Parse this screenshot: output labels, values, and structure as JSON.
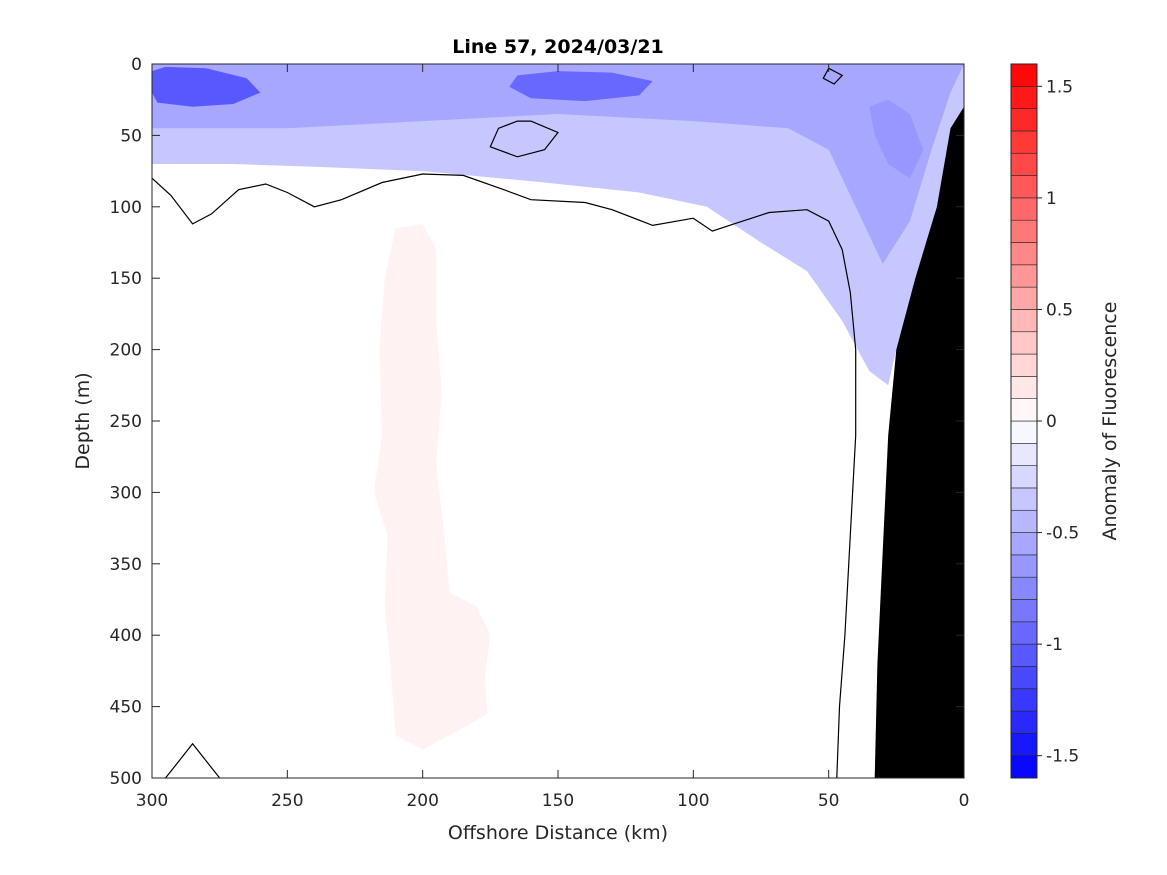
{
  "chart_data": {
    "type": "heatmap",
    "title": "Line 57, 2024/03/21",
    "xlabel": "Offshore Distance (km)",
    "ylabel": "Depth (m)",
    "colorbar_label": "Anomaly of Fluorescence",
    "xlim": [
      300,
      0
    ],
    "ylim": [
      0,
      500
    ],
    "x_ticks": [
      300,
      250,
      200,
      150,
      100,
      50,
      0
    ],
    "y_ticks": [
      0,
      50,
      100,
      150,
      200,
      250,
      300,
      350,
      400,
      450,
      500
    ],
    "colorbar_range": [
      -1.6,
      1.6
    ],
    "colorbar_ticks": [
      1.5,
      1,
      0.5,
      0,
      -0.5,
      -1,
      -1.5
    ],
    "colorbar_levels": 32,
    "colors": {
      "positive": "#ff0000",
      "negative": "#0000ff",
      "zero": "#ffffff",
      "bathymetry": "#000000",
      "contour": "#000000"
    },
    "anomaly_regions": [
      {
        "name": "surface negative layer",
        "value": -0.35,
        "points": [
          [
            300,
            0
          ],
          [
            0,
            0
          ],
          [
            0,
            30
          ],
          [
            10,
            120
          ],
          [
            18,
            160
          ],
          [
            25,
            200
          ],
          [
            28,
            225
          ],
          [
            35,
            215
          ],
          [
            45,
            180
          ],
          [
            58,
            145
          ],
          [
            75,
            125
          ],
          [
            95,
            100
          ],
          [
            120,
            90
          ],
          [
            160,
            82
          ],
          [
            200,
            75
          ],
          [
            240,
            72
          ],
          [
            270,
            70
          ],
          [
            300,
            70
          ]
        ]
      },
      {
        "name": "upper blue band",
        "value": -0.55,
        "points": [
          [
            300,
            0
          ],
          [
            0,
            0
          ],
          [
            5,
            20
          ],
          [
            12,
            60
          ],
          [
            20,
            110
          ],
          [
            30,
            140
          ],
          [
            40,
            100
          ],
          [
            50,
            60
          ],
          [
            65,
            45
          ],
          [
            100,
            40
          ],
          [
            150,
            35
          ],
          [
            200,
            40
          ],
          [
            250,
            45
          ],
          [
            300,
            45
          ]
        ]
      },
      {
        "name": "surface core west",
        "value": -1.05,
        "points": [
          [
            300,
            5
          ],
          [
            295,
            2
          ],
          [
            280,
            3
          ],
          [
            265,
            10
          ],
          [
            260,
            20
          ],
          [
            270,
            28
          ],
          [
            285,
            30
          ],
          [
            298,
            27
          ],
          [
            300,
            20
          ]
        ]
      },
      {
        "name": "surface core mid",
        "value": -0.95,
        "points": [
          [
            165,
            8
          ],
          [
            150,
            5
          ],
          [
            130,
            6
          ],
          [
            115,
            12
          ],
          [
            120,
            22
          ],
          [
            140,
            26
          ],
          [
            160,
            24
          ],
          [
            168,
            16
          ]
        ]
      },
      {
        "name": "nearshore negative",
        "value": -0.65,
        "points": [
          [
            35,
            30
          ],
          [
            28,
            25
          ],
          [
            20,
            35
          ],
          [
            15,
            60
          ],
          [
            20,
            80
          ],
          [
            28,
            70
          ],
          [
            33,
            50
          ]
        ]
      },
      {
        "name": "subsurface positive",
        "value": 0.08,
        "points": [
          [
            210,
            115
          ],
          [
            200,
            112
          ],
          [
            195,
            130
          ],
          [
            195,
            180
          ],
          [
            193,
            230
          ],
          [
            195,
            280
          ],
          [
            192,
            330
          ],
          [
            190,
            370
          ],
          [
            180,
            380
          ],
          [
            175,
            400
          ],
          [
            177,
            430
          ],
          [
            176,
            455
          ],
          [
            185,
            465
          ],
          [
            200,
            480
          ],
          [
            210,
            470
          ],
          [
            212,
            420
          ],
          [
            214,
            380
          ],
          [
            213,
            330
          ],
          [
            218,
            300
          ],
          [
            215,
            260
          ],
          [
            216,
            200
          ],
          [
            214,
            150
          ]
        ]
      }
    ],
    "contours_zero": [
      [
        [
          300,
          80
        ],
        [
          293,
          92
        ],
        [
          285,
          112
        ],
        [
          278,
          105
        ],
        [
          268,
          88
        ],
        [
          258,
          84
        ],
        [
          250,
          90
        ],
        [
          240,
          100
        ],
        [
          230,
          95
        ],
        [
          215,
          83
        ],
        [
          200,
          77
        ],
        [
          185,
          78
        ],
        [
          170,
          88
        ],
        [
          160,
          95
        ],
        [
          140,
          97
        ],
        [
          130,
          102
        ],
        [
          115,
          113
        ],
        [
          100,
          108
        ],
        [
          93,
          117
        ],
        [
          85,
          112
        ],
        [
          72,
          104
        ],
        [
          58,
          102
        ],
        [
          50,
          110
        ],
        [
          45,
          130
        ],
        [
          42,
          160
        ],
        [
          40,
          200
        ],
        [
          40,
          260
        ],
        [
          42,
          330
        ],
        [
          44,
          400
        ],
        [
          46,
          450
        ],
        [
          47,
          500
        ]
      ],
      [
        [
          160,
          40
        ],
        [
          150,
          48
        ],
        [
          155,
          60
        ],
        [
          165,
          65
        ],
        [
          175,
          58
        ],
        [
          172,
          45
        ],
        [
          165,
          40
        ],
        [
          160,
          40
        ]
      ],
      [
        [
          50,
          3
        ],
        [
          45,
          8
        ],
        [
          48,
          14
        ],
        [
          52,
          10
        ],
        [
          50,
          3
        ]
      ],
      [
        [
          295,
          500
        ],
        [
          290,
          488
        ],
        [
          285,
          476
        ],
        [
          280,
          488
        ],
        [
          275,
          500
        ]
      ]
    ],
    "bathymetry": [
      [
        0,
        30
      ],
      [
        5,
        45
      ],
      [
        10,
        100
      ],
      [
        18,
        150
      ],
      [
        25,
        200
      ],
      [
        28,
        260
      ],
      [
        30,
        340
      ],
      [
        32,
        420
      ],
      [
        33,
        500
      ],
      [
        0,
        500
      ]
    ]
  }
}
